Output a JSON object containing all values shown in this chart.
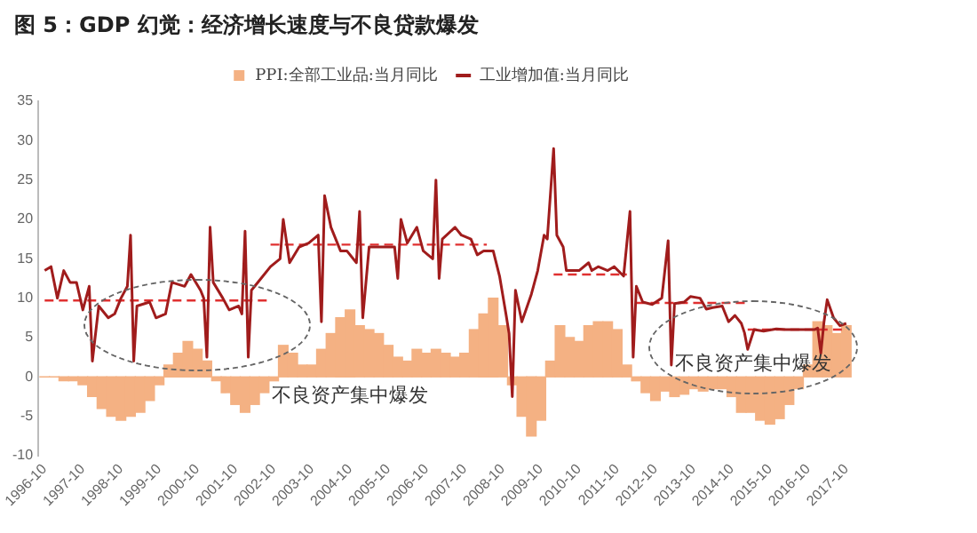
{
  "chart_data": {
    "type": "bar",
    "title": "图 5：GDP 幻觉：经济增长速度与不良贷款爆发",
    "xlim": [
      "1996-08",
      "2017-12"
    ],
    "xticks": [
      "1996-10",
      "1997-10",
      "1998-10",
      "1999-10",
      "2000-10",
      "2001-10",
      "2002-10",
      "2003-10",
      "2004-10",
      "2005-10",
      "2006-10",
      "2007-10",
      "2008-10",
      "2009-10",
      "2010-10",
      "2011-10",
      "2012-10",
      "2013-10",
      "2014-10",
      "2015-10",
      "2016-10",
      "2017-10"
    ],
    "ylim": [
      -10,
      35
    ],
    "yticks": [
      -10,
      -5,
      0,
      5,
      10,
      15,
      20,
      25,
      30,
      35
    ],
    "grid": false,
    "legend": "top",
    "series": [
      {
        "name": "PPI:全部工业品:当月同比",
        "color": "#f4b183",
        "x": [
          "1996-10",
          "1997-01",
          "1997-04",
          "1997-07",
          "1997-10",
          "1998-01",
          "1998-04",
          "1998-07",
          "1998-10",
          "1999-01",
          "1999-04",
          "1999-07",
          "1999-10",
          "2000-01",
          "2000-04",
          "2000-07",
          "2000-10",
          "2001-01",
          "2001-04",
          "2001-07",
          "2001-10",
          "2002-01",
          "2002-04",
          "2002-07",
          "2002-10",
          "2003-01",
          "2003-04",
          "2003-07",
          "2003-10",
          "2004-01",
          "2004-04",
          "2004-07",
          "2004-10",
          "2005-01",
          "2005-04",
          "2005-07",
          "2005-10",
          "2006-01",
          "2006-04",
          "2006-07",
          "2006-10",
          "2007-01",
          "2007-04",
          "2007-07",
          "2007-10",
          "2008-01",
          "2008-04",
          "2008-07",
          "2008-10",
          "2009-01",
          "2009-04",
          "2009-07",
          "2009-10",
          "2010-01",
          "2010-04",
          "2010-07",
          "2010-10",
          "2011-01",
          "2011-04",
          "2011-07",
          "2011-10",
          "2012-01",
          "2012-04",
          "2012-07",
          "2012-10",
          "2013-01",
          "2013-04",
          "2013-07",
          "2013-10",
          "2014-01",
          "2014-04",
          "2014-07",
          "2014-10",
          "2015-01",
          "2015-04",
          "2015-07",
          "2015-10",
          "2016-01",
          "2016-04",
          "2016-07",
          "2016-10",
          "2017-01",
          "2017-04",
          "2017-07",
          "2017-10"
        ],
        "values": [
          0,
          0,
          -0.5,
          -0.5,
          -1,
          -2.5,
          -4,
          -5,
          -5.5,
          -5,
          -4.5,
          -3,
          -1,
          1.5,
          3,
          4.5,
          3.5,
          2,
          -0.5,
          -2,
          -3.5,
          -4.5,
          -3.5,
          -2,
          -0.5,
          4,
          3,
          1.5,
          1.5,
          3.5,
          5.5,
          7.5,
          8.5,
          6.5,
          6,
          5.5,
          4,
          2.5,
          2,
          3.5,
          3,
          3.5,
          3,
          2.5,
          3,
          6,
          8,
          10,
          6.5,
          -1,
          -5,
          -7.5,
          -5.5,
          2,
          6.5,
          5,
          4.5,
          6.5,
          7,
          7,
          6,
          1.5,
          -0.5,
          -2,
          -3,
          -1.8,
          -2.5,
          -2.2,
          -1.5,
          -1.8,
          -1.5,
          -1.5,
          -2.5,
          -4.5,
          -4.5,
          -5.5,
          -6,
          -5.3,
          -3.5,
          -1.5,
          1.5,
          7,
          6.5,
          5.5,
          6.5
        ]
      },
      {
        "type": "line",
        "name": "工业增加值:当月同比",
        "color": "#a01c1c",
        "marker": "none",
        "line_style": "solid",
        "x": [
          "1996-10",
          "1996-12",
          "1997-02",
          "1997-04",
          "1997-06",
          "1997-08",
          "1997-10",
          "1997-12",
          "1998-01",
          "1998-03",
          "1998-06",
          "1998-08",
          "1998-10",
          "1998-12",
          "1999-01",
          "1999-02",
          "1999-03",
          "1999-07",
          "1999-09",
          "1999-12",
          "2000-02",
          "2000-06",
          "2000-08",
          "2000-11",
          "2000-12",
          "2001-01",
          "2001-02",
          "2001-03",
          "2001-06",
          "2001-08",
          "2001-11",
          "2001-12",
          "2002-01",
          "2002-02",
          "2002-03",
          "2002-06",
          "2002-09",
          "2002-12",
          "2003-01",
          "2003-03",
          "2003-06",
          "2003-09",
          "2003-12",
          "2004-01",
          "2004-02",
          "2004-04",
          "2004-07",
          "2004-09",
          "2004-12",
          "2005-01",
          "2005-02",
          "2005-04",
          "2005-08",
          "2005-12",
          "2006-01",
          "2006-02",
          "2006-04",
          "2006-07",
          "2006-09",
          "2006-12",
          "2007-01",
          "2007-02",
          "2007-03",
          "2007-07",
          "2007-09",
          "2007-12",
          "2008-02",
          "2008-04",
          "2008-07",
          "2008-09",
          "2008-11",
          "2008-12",
          "2009-01",
          "2009-02",
          "2009-04",
          "2009-07",
          "2009-09",
          "2009-11",
          "2009-12",
          "2010-02",
          "2010-03",
          "2010-05",
          "2010-06",
          "2010-08",
          "2010-10",
          "2011-01",
          "2011-02",
          "2011-04",
          "2011-07",
          "2011-09",
          "2011-12",
          "2012-02",
          "2012-03",
          "2012-04",
          "2012-06",
          "2012-09",
          "2012-12",
          "2013-02",
          "2013-03",
          "2013-04",
          "2013-07",
          "2013-09",
          "2013-12",
          "2014-02",
          "2014-04",
          "2014-07",
          "2014-09",
          "2014-11",
          "2015-01",
          "2015-02",
          "2015-03",
          "2015-05",
          "2015-08",
          "2015-12",
          "2016-03",
          "2016-07",
          "2016-12",
          "2017-01",
          "2017-02",
          "2017-03",
          "2017-04",
          "2017-06",
          "2017-08",
          "2017-10"
        ],
        "values": [
          13.5,
          14,
          10,
          13.5,
          12,
          12,
          8.5,
          11.5,
          2,
          9,
          7.5,
          8,
          10,
          11.5,
          18,
          2,
          9,
          9.5,
          7.5,
          8,
          12,
          11.5,
          13,
          11,
          10,
          2.5,
          19,
          12,
          10,
          8.5,
          9,
          8,
          18.5,
          2.5,
          11,
          12.5,
          14,
          15,
          20,
          14.5,
          16.5,
          17,
          18,
          7,
          23,
          19,
          16,
          16,
          14.5,
          21,
          7.5,
          16.5,
          16.5,
          16.5,
          12.5,
          20,
          17,
          19,
          16,
          15,
          25,
          12.5,
          17.5,
          19,
          18,
          17.5,
          15.5,
          16,
          16,
          12.8,
          8,
          5.5,
          -2.5,
          11,
          7,
          10.5,
          13.5,
          18,
          17.5,
          29,
          18,
          16.5,
          13.5,
          13.5,
          13.5,
          14.5,
          13.5,
          14,
          13.5,
          14,
          12.8,
          21,
          2.5,
          11.5,
          9.5,
          9.2,
          10,
          17.3,
          1.5,
          9.3,
          9.5,
          10.2,
          10,
          8.6,
          8.8,
          9,
          7,
          7.8,
          6.8,
          5.6,
          3.5,
          6,
          5.8,
          6.1,
          6,
          6,
          6,
          6.2,
          3,
          7,
          9.8,
          7.5,
          6.5,
          6.8
        ]
      },
      {
        "type": "line",
        "color": "#e03030",
        "marker": "none",
        "line_style": "dashed",
        "x": [
          "1996-10",
          "2002-09"
        ],
        "values": [
          9.7,
          9.7
        ]
      },
      {
        "type": "line",
        "color": "#e03030",
        "marker": "none",
        "line_style": "dashed",
        "x": [
          "2002-09",
          "2008-05"
        ],
        "values": [
          16.8,
          16.8
        ]
      },
      {
        "type": "line",
        "color": "#e03030",
        "marker": "none",
        "line_style": "dashed",
        "x": [
          "2010-02",
          "2012-01"
        ],
        "values": [
          13,
          13
        ]
      },
      {
        "type": "line",
        "color": "#e03030",
        "marker": "none",
        "line_style": "dashed",
        "x": [
          "2012-04",
          "2015-03"
        ],
        "values": [
          9.4,
          9.4
        ]
      },
      {
        "type": "line",
        "color": "#e03030",
        "marker": "none",
        "line_style": "dashed",
        "x": [
          "2015-03",
          "2017-10"
        ],
        "values": [
          6,
          6
        ]
      }
    ],
    "annotations": [
      "不良资产集中爆发",
      "不良资产集中爆发"
    ]
  }
}
